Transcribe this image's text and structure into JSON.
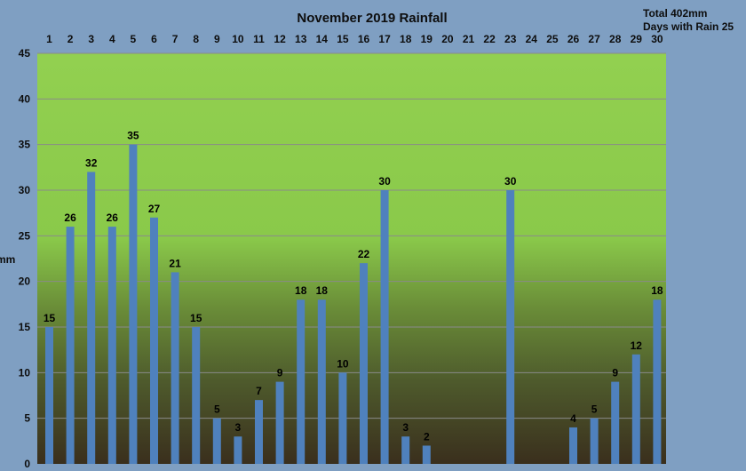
{
  "chart_data": {
    "type": "bar",
    "title": "November 2019 Rainfall",
    "summary": {
      "total": "Total 402mm",
      "days_with_rain": "Days with Rain 25"
    },
    "ylabel": "mm",
    "xlabel": "",
    "ylim": [
      0,
      45
    ],
    "y_ticks": [
      0,
      5,
      10,
      15,
      20,
      25,
      30,
      35,
      40,
      45
    ],
    "categories": [
      "1",
      "2",
      "3",
      "4",
      "5",
      "6",
      "7",
      "8",
      "9",
      "10",
      "11",
      "12",
      "13",
      "14",
      "15",
      "16",
      "17",
      "18",
      "19",
      "20",
      "21",
      "22",
      "23",
      "24",
      "25",
      "26",
      "27",
      "28",
      "29",
      "30"
    ],
    "values": [
      15,
      26,
      32,
      26,
      35,
      27,
      21,
      15,
      5,
      3,
      7,
      9,
      18,
      18,
      10,
      22,
      30,
      3,
      2,
      0,
      0,
      0,
      30,
      0,
      0,
      4,
      5,
      9,
      12,
      18
    ],
    "grid": true,
    "legend": "none",
    "colors": {
      "bar": "#4f81bd",
      "plot_top": "#92d050",
      "plot_bottom": "#3a2f1d",
      "grid": "#8a8a8a",
      "page_background": "#7f9fc2"
    }
  }
}
